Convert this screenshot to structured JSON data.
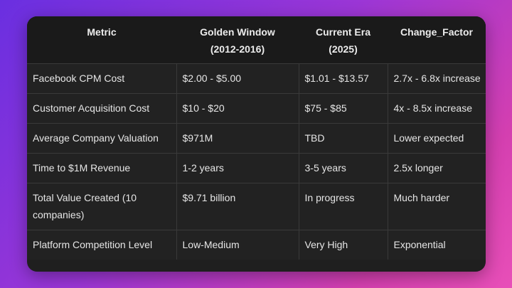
{
  "table": {
    "headers": [
      [
        "Metric"
      ],
      [
        "Golden Window",
        "(2012-2016)"
      ],
      [
        "Current Era",
        "(2025)"
      ],
      [
        "Change_Factor"
      ]
    ],
    "rows": [
      [
        "Facebook CPM Cost",
        "$2.00 - $5.00",
        "$1.01 - $13.57",
        "2.7x - 6.8x increase"
      ],
      [
        "Customer Acquisition Cost",
        "$10 - $20",
        "$75 - $85",
        "4x - 8.5x increase"
      ],
      [
        "Average Company Valuation",
        "$971M",
        "TBD",
        "Lower expected"
      ],
      [
        "Time to $1M Revenue",
        "1-2 years",
        "3-5 years",
        "2.5x longer"
      ],
      [
        "Total Value Created (10 companies)",
        "$9.71 billion",
        "In progress",
        "Much harder"
      ],
      [
        "Platform Competition Level",
        "Low-Medium",
        "Very High",
        "Exponential"
      ]
    ]
  }
}
